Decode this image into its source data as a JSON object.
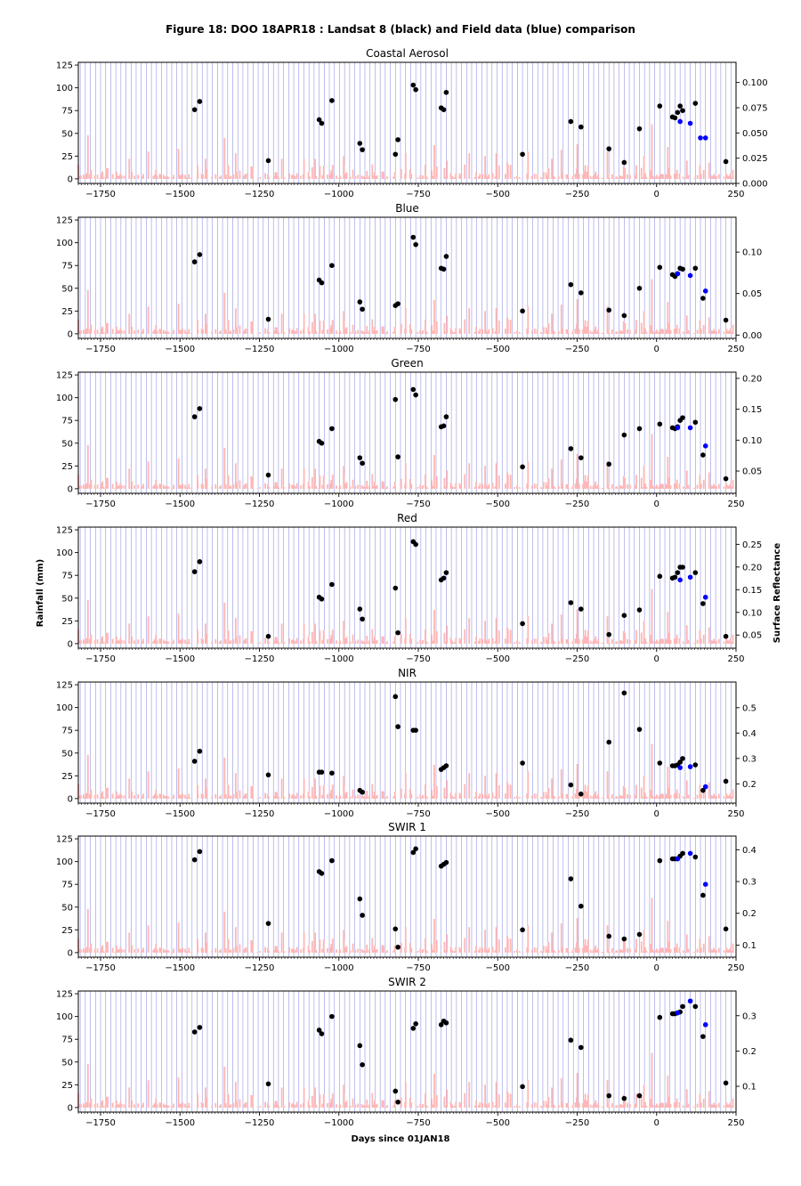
{
  "figure": {
    "title": "Figure 18: DOO 18APR18 : Landsat 8 (black) and Field data (blue) comparison",
    "xlabel": "Days since 01JAN18",
    "ylabel_left": "Rainfall (mm)",
    "ylabel_right": "Surface Reflectance"
  },
  "colors": {
    "landsat": "#000000",
    "field": "#0000ff",
    "rainfall": "#ffb6b6",
    "overpass_lines": "#7070d8"
  },
  "chart_data": {
    "type": "scatter",
    "x_range": [
      -1820,
      250
    ],
    "x_ticks": [
      -1750,
      -1500,
      -1250,
      -1000,
      -750,
      -500,
      -250,
      0,
      250
    ],
    "rain_ylim": [
      -5,
      128
    ],
    "rain_ticks": [
      0,
      25,
      50,
      75,
      100,
      125
    ],
    "landsat_days": [
      -1454,
      -1438,
      -1222,
      -1062,
      -1054,
      -1022,
      -934,
      -926,
      -822,
      -814,
      -766,
      -758,
      -678,
      -670,
      -662,
      -422,
      -270,
      -238,
      -150,
      -102,
      -54,
      10,
      50,
      58,
      66,
      74,
      82,
      122,
      146,
      218
    ],
    "overpass_interval_days": 16,
    "overpass_anchor_day": 10,
    "rainfall": {
      "peaks": [
        {
          "x": -1790,
          "y": 48
        },
        {
          "x": -1780,
          "y": 10
        },
        {
          "x": -1660,
          "y": 22
        },
        {
          "x": -1600,
          "y": 30
        },
        {
          "x": -1505,
          "y": 33
        },
        {
          "x": -1445,
          "y": 15
        },
        {
          "x": -1420,
          "y": 22
        },
        {
          "x": -1360,
          "y": 45
        },
        {
          "x": -1325,
          "y": 28
        },
        {
          "x": -1180,
          "y": 22
        },
        {
          "x": -1110,
          "y": 22
        },
        {
          "x": -1075,
          "y": 22
        },
        {
          "x": -985,
          "y": 25
        },
        {
          "x": -895,
          "y": 16
        },
        {
          "x": -860,
          "y": 8
        },
        {
          "x": -790,
          "y": 28
        },
        {
          "x": -700,
          "y": 37
        },
        {
          "x": -660,
          "y": 20
        },
        {
          "x": -590,
          "y": 28
        },
        {
          "x": -540,
          "y": 25
        },
        {
          "x": -505,
          "y": 28
        },
        {
          "x": -470,
          "y": 18
        },
        {
          "x": -405,
          "y": 30
        },
        {
          "x": -330,
          "y": 22
        },
        {
          "x": -300,
          "y": 32
        },
        {
          "x": -250,
          "y": 38
        },
        {
          "x": -225,
          "y": 15
        },
        {
          "x": -155,
          "y": 30
        },
        {
          "x": -100,
          "y": 12
        },
        {
          "x": -40,
          "y": 25
        },
        {
          "x": -15,
          "y": 60
        },
        {
          "x": 35,
          "y": 35
        },
        {
          "x": 95,
          "y": 20
        },
        {
          "x": 165,
          "y": 18
        },
        {
          "x": 240,
          "y": 10
        }
      ]
    },
    "panels": [
      {
        "title": "Coastal Aerosol",
        "refl_ylim": [
          0.0,
          0.12
        ],
        "refl_ticks": [
          0.0,
          0.025,
          0.05,
          0.075,
          0.1
        ],
        "refl_tick_labels": [
          "0.000",
          "0.025",
          "0.050",
          "0.075",
          "0.100"
        ],
        "landsat": [
          [
            -1454,
            76
          ],
          [
            -1438,
            85
          ],
          [
            -1222,
            20
          ],
          [
            -1062,
            65
          ],
          [
            -1054,
            61
          ],
          [
            -1022,
            86
          ],
          [
            -934,
            39
          ],
          [
            -926,
            32
          ],
          [
            -822,
            27
          ],
          [
            -814,
            43
          ],
          [
            -766,
            103
          ],
          [
            -758,
            98
          ],
          [
            -678,
            78
          ],
          [
            -670,
            76
          ],
          [
            -662,
            95
          ],
          [
            -422,
            27
          ],
          [
            -270,
            63
          ],
          [
            -238,
            57
          ],
          [
            -150,
            33
          ],
          [
            -102,
            18
          ],
          [
            -54,
            55
          ],
          [
            10,
            80
          ],
          [
            50,
            68
          ],
          [
            58,
            67
          ],
          [
            66,
            73
          ],
          [
            74,
            80
          ],
          [
            82,
            75
          ],
          [
            122,
            83
          ],
          [
            218,
            19
          ]
        ],
        "field": [
          [
            74,
            63
          ],
          [
            106,
            61
          ],
          [
            138,
            45
          ],
          [
            154,
            45
          ]
        ]
      },
      {
        "title": "Blue",
        "refl_ylim": [
          -0.004,
          0.142
        ],
        "refl_ticks": [
          0.0,
          0.05,
          0.1
        ],
        "refl_tick_labels": [
          "0.00",
          "0.05",
          "0.10"
        ],
        "landsat": [
          [
            -1454,
            79
          ],
          [
            -1438,
            87
          ],
          [
            -1222,
            16
          ],
          [
            -1062,
            59
          ],
          [
            -1054,
            56
          ],
          [
            -1022,
            75
          ],
          [
            -934,
            35
          ],
          [
            -926,
            27
          ],
          [
            -822,
            31
          ],
          [
            -814,
            33
          ],
          [
            -766,
            106
          ],
          [
            -758,
            98
          ],
          [
            -678,
            72
          ],
          [
            -670,
            71
          ],
          [
            -662,
            85
          ],
          [
            -422,
            25
          ],
          [
            -270,
            54
          ],
          [
            -238,
            45
          ],
          [
            -150,
            26
          ],
          [
            -102,
            20
          ],
          [
            -54,
            50
          ],
          [
            10,
            73
          ],
          [
            50,
            65
          ],
          [
            58,
            63
          ],
          [
            66,
            66
          ],
          [
            74,
            72
          ],
          [
            82,
            71
          ],
          [
            122,
            72
          ],
          [
            146,
            39
          ],
          [
            218,
            15
          ]
        ],
        "field": [
          [
            66,
            66
          ],
          [
            106,
            64
          ],
          [
            154,
            47
          ]
        ]
      },
      {
        "title": "Green",
        "refl_ylim": [
          0.014,
          0.21
        ],
        "refl_ticks": [
          0.05,
          0.1,
          0.15,
          0.2
        ],
        "refl_tick_labels": [
          "0.05",
          "0.10",
          "0.15",
          "0.20"
        ],
        "landsat": [
          [
            -1454,
            79
          ],
          [
            -1438,
            88
          ],
          [
            -1222,
            15
          ],
          [
            -1062,
            52
          ],
          [
            -1054,
            50
          ],
          [
            -1022,
            66
          ],
          [
            -934,
            34
          ],
          [
            -926,
            28
          ],
          [
            -822,
            98
          ],
          [
            -814,
            35
          ],
          [
            -766,
            109
          ],
          [
            -758,
            103
          ],
          [
            -678,
            68
          ],
          [
            -670,
            69
          ],
          [
            -662,
            79
          ],
          [
            -422,
            24
          ],
          [
            -270,
            44
          ],
          [
            -238,
            34
          ],
          [
            -150,
            27
          ],
          [
            -102,
            59
          ],
          [
            -54,
            66
          ],
          [
            10,
            71
          ],
          [
            50,
            67
          ],
          [
            58,
            66
          ],
          [
            66,
            68
          ],
          [
            74,
            75
          ],
          [
            82,
            78
          ],
          [
            122,
            73
          ],
          [
            146,
            37
          ],
          [
            218,
            11
          ]
        ],
        "field": [
          [
            66,
            67
          ],
          [
            106,
            67
          ],
          [
            154,
            47
          ]
        ]
      },
      {
        "title": "Red",
        "refl_ylim": [
          0.021,
          0.288
        ],
        "refl_ticks": [
          0.05,
          0.1,
          0.15,
          0.2,
          0.25
        ],
        "refl_tick_labels": [
          "0.05",
          "0.10",
          "0.15",
          "0.20",
          "0.25"
        ],
        "landsat": [
          [
            -1454,
            79
          ],
          [
            -1438,
            90
          ],
          [
            -1222,
            8
          ],
          [
            -1062,
            51
          ],
          [
            -1054,
            49
          ],
          [
            -1022,
            65
          ],
          [
            -934,
            38
          ],
          [
            -926,
            27
          ],
          [
            -822,
            61
          ],
          [
            -814,
            12
          ],
          [
            -766,
            112
          ],
          [
            -758,
            109
          ],
          [
            -678,
            70
          ],
          [
            -670,
            72
          ],
          [
            -662,
            78
          ],
          [
            -422,
            22
          ],
          [
            -270,
            45
          ],
          [
            -238,
            38
          ],
          [
            -150,
            10
          ],
          [
            -102,
            31
          ],
          [
            -54,
            37
          ],
          [
            10,
            74
          ],
          [
            50,
            72
          ],
          [
            58,
            73
          ],
          [
            66,
            78
          ],
          [
            74,
            84
          ],
          [
            82,
            84
          ],
          [
            122,
            78
          ],
          [
            146,
            44
          ],
          [
            218,
            8
          ]
        ],
        "field": [
          [
            74,
            70
          ],
          [
            106,
            73
          ],
          [
            154,
            51
          ]
        ]
      },
      {
        "title": "NIR",
        "refl_ylim": [
          0.124,
          0.601
        ],
        "refl_ticks": [
          0.2,
          0.3,
          0.4,
          0.5
        ],
        "refl_tick_labels": [
          "0.2",
          "0.3",
          "0.4",
          "0.5"
        ],
        "landsat": [
          [
            -1454,
            41
          ],
          [
            -1438,
            52
          ],
          [
            -1222,
            26
          ],
          [
            -1062,
            29
          ],
          [
            -1054,
            29
          ],
          [
            -1022,
            28
          ],
          [
            -934,
            9
          ],
          [
            -926,
            7
          ],
          [
            -822,
            112
          ],
          [
            -814,
            79
          ],
          [
            -766,
            75
          ],
          [
            -758,
            75
          ],
          [
            -678,
            32
          ],
          [
            -670,
            34
          ],
          [
            -662,
            36
          ],
          [
            -422,
            39
          ],
          [
            -270,
            15
          ],
          [
            -238,
            5
          ],
          [
            -150,
            62
          ],
          [
            -102,
            116
          ],
          [
            -54,
            76
          ],
          [
            10,
            39
          ],
          [
            50,
            36
          ],
          [
            58,
            36
          ],
          [
            66,
            37
          ],
          [
            74,
            40
          ],
          [
            82,
            44
          ],
          [
            122,
            37
          ],
          [
            146,
            9
          ],
          [
            218,
            19
          ]
        ],
        "field": [
          [
            74,
            34
          ],
          [
            106,
            35
          ],
          [
            154,
            13
          ]
        ]
      },
      {
        "title": "SWIR 1",
        "refl_ylim": [
          0.062,
          0.443
        ],
        "refl_ticks": [
          0.1,
          0.2,
          0.3,
          0.4
        ],
        "refl_tick_labels": [
          "0.1",
          "0.2",
          "0.3",
          "0.4"
        ],
        "landsat": [
          [
            -1454,
            102
          ],
          [
            -1438,
            111
          ],
          [
            -1222,
            32
          ],
          [
            -1062,
            89
          ],
          [
            -1054,
            87
          ],
          [
            -1022,
            101
          ],
          [
            -934,
            59
          ],
          [
            -926,
            41
          ],
          [
            -822,
            26
          ],
          [
            -814,
            6
          ],
          [
            -766,
            110
          ],
          [
            -758,
            114
          ],
          [
            -678,
            95
          ],
          [
            -670,
            97
          ],
          [
            -662,
            99
          ],
          [
            -422,
            25
          ],
          [
            -270,
            81
          ],
          [
            -238,
            51
          ],
          [
            -150,
            18
          ],
          [
            -102,
            15
          ],
          [
            -54,
            20
          ],
          [
            10,
            101
          ],
          [
            50,
            103
          ],
          [
            58,
            103
          ],
          [
            66,
            103
          ],
          [
            74,
            106
          ],
          [
            82,
            109
          ],
          [
            122,
            105
          ],
          [
            146,
            63
          ],
          [
            218,
            26
          ]
        ],
        "field": [
          [
            66,
            103
          ],
          [
            106,
            109
          ],
          [
            154,
            75
          ]
        ]
      },
      {
        "title": "SWIR 2",
        "refl_ylim": [
          0.027,
          0.37
        ],
        "refl_ticks": [
          0.1,
          0.2,
          0.3
        ],
        "refl_tick_labels": [
          "0.1",
          "0.2",
          "0.3"
        ],
        "landsat": [
          [
            -1454,
            83
          ],
          [
            -1438,
            88
          ],
          [
            -1222,
            26
          ],
          [
            -1062,
            85
          ],
          [
            -1054,
            81
          ],
          [
            -1022,
            100
          ],
          [
            -934,
            68
          ],
          [
            -926,
            47
          ],
          [
            -822,
            18
          ],
          [
            -814,
            6
          ],
          [
            -766,
            87
          ],
          [
            -758,
            92
          ],
          [
            -678,
            91
          ],
          [
            -670,
            95
          ],
          [
            -662,
            93
          ],
          [
            -422,
            23
          ],
          [
            -270,
            74
          ],
          [
            -238,
            66
          ],
          [
            -150,
            13
          ],
          [
            -102,
            10
          ],
          [
            -54,
            13
          ],
          [
            10,
            99
          ],
          [
            50,
            103
          ],
          [
            58,
            103
          ],
          [
            66,
            104
          ],
          [
            74,
            105
          ],
          [
            82,
            111
          ],
          [
            122,
            111
          ],
          [
            146,
            78
          ],
          [
            218,
            27
          ]
        ],
        "field": [
          [
            66,
            104
          ],
          [
            106,
            117
          ],
          [
            154,
            91
          ]
        ]
      }
    ]
  }
}
